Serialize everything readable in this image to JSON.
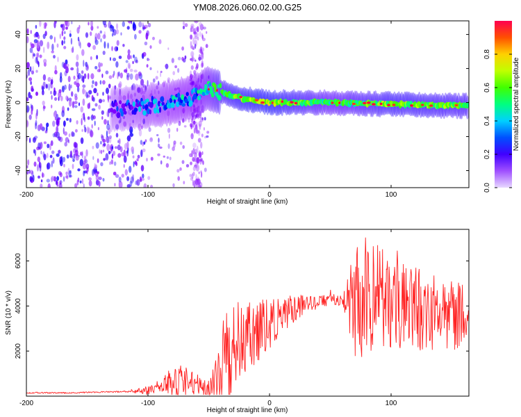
{
  "chart_data": [
    {
      "type": "heatmap",
      "title": "YM08.2026.060.02.00.G25",
      "xlabel": "Height of straight line (km)",
      "ylabel": "Frequency (Hz)",
      "xlim": [
        -200,
        164
      ],
      "ylim": [
        -50,
        48
      ],
      "xticks": [
        -200,
        -100,
        0,
        100
      ],
      "xtick_labels": [
        "-200",
        "-100",
        "0",
        "100"
      ],
      "yticks": [
        -40,
        -20,
        0,
        20,
        40
      ],
      "ytick_labels": [
        "-40",
        "-20",
        "0",
        "20",
        "40"
      ],
      "colorbar": {
        "label": "Normalized spectral amplitude",
        "range": [
          0,
          1
        ],
        "ticks": [
          0.0,
          0.2,
          0.4,
          0.6,
          0.8
        ],
        "tick_labels": [
          "0.0",
          "0.2",
          "0.4",
          "0.6",
          "0.8"
        ],
        "colormap": [
          "#e8d8ff",
          "#8000ff",
          "#0000ff",
          "#00c8ff",
          "#00ff80",
          "#40ff00",
          "#c0ff00",
          "#ffd000",
          "#ff6000",
          "#ff0040"
        ]
      },
      "ridge": {
        "x": [
          -130,
          -100,
          -80,
          -60,
          -50,
          -40,
          -20,
          0,
          50,
          100,
          164
        ],
        "frequency": [
          -4,
          -2,
          0,
          4,
          8,
          6,
          2,
          0,
          0,
          -1,
          -2
        ],
        "amplitude": [
          0.25,
          0.35,
          0.4,
          0.45,
          0.55,
          0.7,
          0.8,
          0.85,
          0.6,
          0.75,
          0.7
        ]
      },
      "noise_regions": [
        {
          "x": [
            -200,
            -100
          ],
          "frequency": [
            -50,
            48
          ],
          "amplitude": 0.2
        },
        {
          "x": [
            -65,
            -55
          ],
          "frequency": [
            -50,
            48
          ],
          "amplitude": 0.1
        }
      ]
    },
    {
      "type": "line",
      "xlabel": "Height of straight line (km)",
      "ylabel": "SNR (10 * v/v)",
      "xlim": [
        -200,
        164
      ],
      "ylim": [
        0,
        7400
      ],
      "xticks": [
        -200,
        -100,
        0,
        100
      ],
      "xtick_labels": [
        "-200",
        "-100",
        "0",
        "100"
      ],
      "yticks": [
        2000,
        4000,
        6000
      ],
      "ytick_labels": [
        "2000",
        "4000",
        "6000"
      ],
      "color": "#ff2222",
      "series": [
        {
          "name": "SNR",
          "x": [
            -200,
            -180,
            -160,
            -140,
            -120,
            -100,
            -90,
            -80,
            -70,
            -60,
            -50,
            -40,
            -35,
            -30,
            -25,
            -20,
            -10,
            0,
            10,
            20,
            30,
            40,
            50,
            60,
            70,
            80,
            90,
            100,
            110,
            120,
            130,
            140,
            150,
            160,
            164
          ],
          "y": [
            150,
            150,
            150,
            180,
            200,
            250,
            400,
            600,
            700,
            500,
            400,
            900,
            1500,
            1900,
            2300,
            2500,
            3000,
            3200,
            3600,
            3800,
            4100,
            4200,
            4300,
            4300,
            4300,
            4400,
            4300,
            4200,
            4000,
            3900,
            3800,
            3700,
            3600,
            3500,
            3400
          ],
          "envelope": [
            0,
            0,
            0,
            0,
            0,
            200,
            200,
            800,
            700,
            500,
            400,
            1500,
            3000,
            1800,
            1800,
            1500,
            1500,
            1200,
            800,
            700,
            400,
            300,
            300,
            300,
            2700,
            2700,
            2400,
            2100,
            1900,
            1900,
            1800,
            1700,
            1600,
            1500,
            1400
          ]
        }
      ]
    }
  ]
}
